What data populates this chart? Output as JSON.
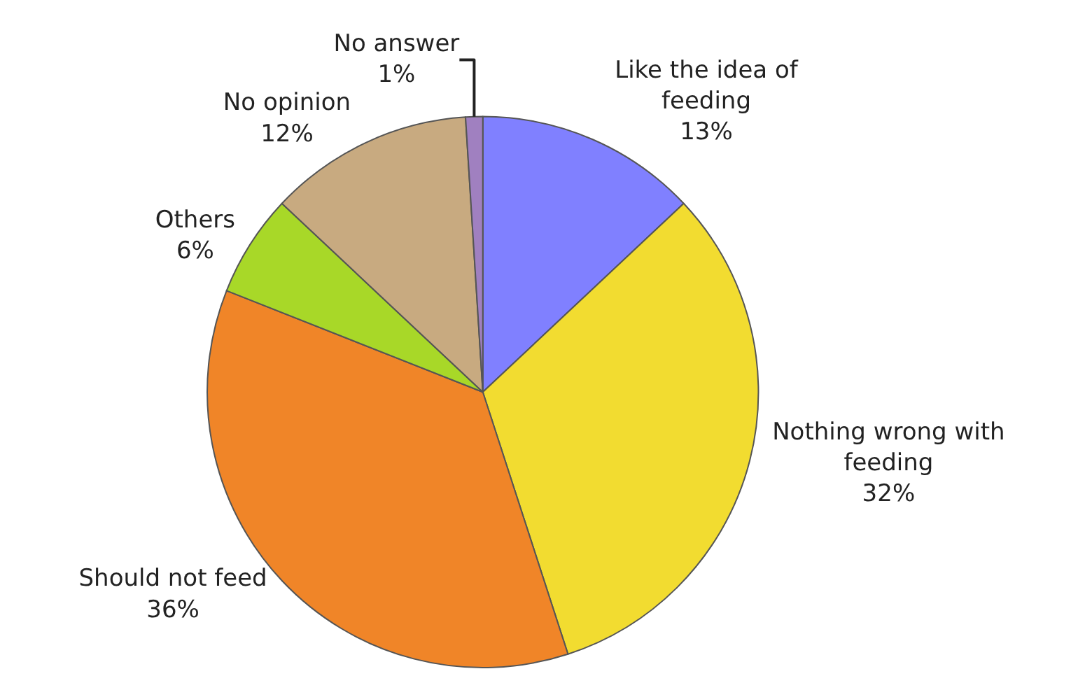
{
  "chart_data": {
    "type": "pie",
    "categories": [
      "Like the idea of feeding",
      "Nothing wrong with feeding",
      "Should not feed",
      "Others",
      "No opinion",
      "No answer"
    ],
    "values": [
      13,
      32,
      36,
      6,
      12,
      1
    ],
    "value_labels": [
      "13%",
      "32%",
      "36%",
      "6%",
      "12%",
      "1%"
    ],
    "colors": [
      "#8080ff",
      "#f2dc30",
      "#f08528",
      "#a8d828",
      "#c8aa80",
      "#a080c0"
    ],
    "legend": false
  }
}
